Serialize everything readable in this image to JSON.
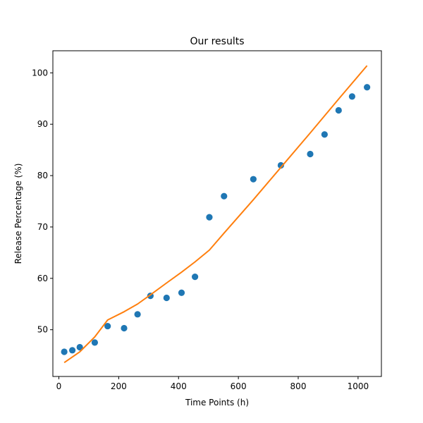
{
  "chart_data": {
    "type": "scatter",
    "title": "Our results",
    "xlabel": "Time Points (h)",
    "ylabel": "Release Percentage (%)",
    "xlim": [
      -20,
      1078
    ],
    "ylim": [
      40.9,
      104.3
    ],
    "xticks": [
      0,
      200,
      400,
      600,
      800,
      1000
    ],
    "yticks": [
      50,
      60,
      70,
      80,
      90,
      100
    ],
    "grid": false,
    "series": [
      {
        "type": "scatter",
        "color": "#1f77b4",
        "x": [
          18,
          45,
          70,
          120,
          163,
          218,
          263,
          306,
          360,
          410,
          455,
          503,
          552,
          650,
          742,
          840,
          888,
          935,
          980,
          1030
        ],
        "y": [
          45.7,
          46.0,
          46.6,
          47.5,
          50.7,
          50.3,
          53.0,
          56.6,
          56.2,
          57.2,
          60.3,
          71.9,
          76.0,
          79.3,
          82.0,
          84.2,
          88.0,
          92.7,
          95.4,
          97.2
        ]
      },
      {
        "type": "line",
        "color": "#ff7f0e",
        "x": [
          18,
          70,
          120,
          163,
          218,
          263,
          306,
          360,
          410,
          455,
          503,
          552,
          650,
          742,
          840,
          935,
          1030
        ],
        "y": [
          43.6,
          45.7,
          48.6,
          51.9,
          53.5,
          55.0,
          56.8,
          59.1,
          61.2,
          63.2,
          65.5,
          68.8,
          75.3,
          81.6,
          88.3,
          94.9,
          101.4
        ]
      }
    ]
  }
}
